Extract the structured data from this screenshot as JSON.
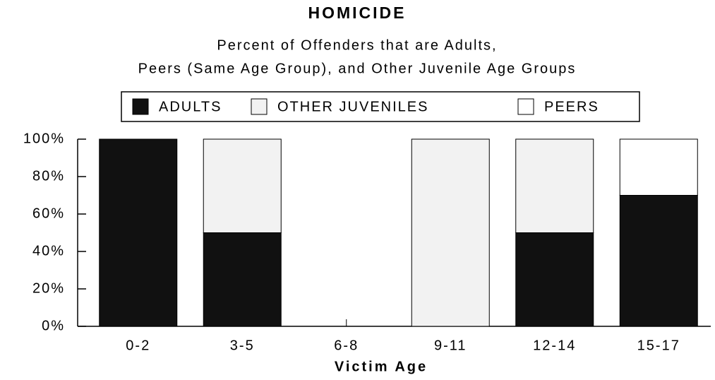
{
  "chart_data": {
    "type": "stacked_bar",
    "title": "HOMICIDE",
    "subtitle": [
      "Percent of Offenders that are Adults,",
      "Peers (Same Age Group), and Other Juvenile Age Groups"
    ],
    "x_label": "Victim Age",
    "categories": [
      "0-2",
      "3-5",
      "6-8",
      "9-11",
      "12-14",
      "15-17"
    ],
    "series": [
      {
        "name": "ADULTS",
        "color": "#111111",
        "values": [
          100,
          50,
          0,
          0,
          50,
          70
        ]
      },
      {
        "name": "OTHER JUVENILES",
        "color": "#f2f2f2",
        "values": [
          0,
          50,
          0,
          100,
          50,
          0
        ]
      },
      {
        "name": "PEERS",
        "color": "#ffffff",
        "values": [
          0,
          0,
          0,
          0,
          0,
          30
        ]
      }
    ],
    "ylim": [
      0,
      100
    ],
    "yticks": [
      {
        "value": 0,
        "label": "0%"
      },
      {
        "value": 20,
        "label": "20%"
      },
      {
        "value": 40,
        "label": "40%"
      },
      {
        "value": 60,
        "label": "60%"
      },
      {
        "value": 80,
        "label": "80%"
      },
      {
        "value": 100,
        "label": "100%"
      }
    ],
    "legend": "top"
  }
}
